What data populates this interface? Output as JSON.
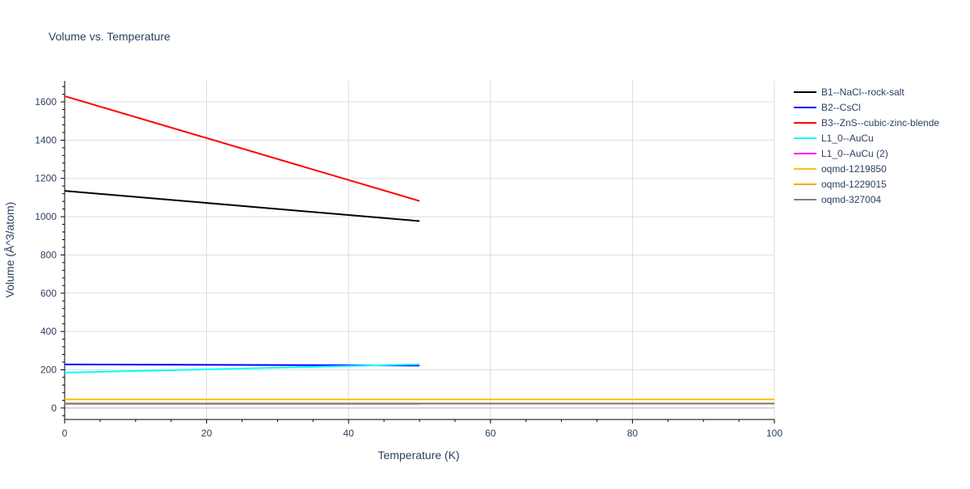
{
  "chart_data": {
    "type": "line",
    "title": "Volume vs. Temperature",
    "xlabel": "Temperature (K)",
    "ylabel": "Volume (Å^3/atom)",
    "xlim": [
      0,
      100
    ],
    "ylim": [
      -60,
      1710
    ],
    "x_ticks": [
      0,
      20,
      40,
      60,
      80,
      100
    ],
    "y_ticks": [
      0,
      200,
      400,
      600,
      800,
      1000,
      1200,
      1400,
      1600
    ],
    "grid": true,
    "legend_position": "right",
    "series": [
      {
        "name": "B1--NaCl--rock-salt",
        "color": "#000000",
        "x": [
          0,
          50
        ],
        "y": [
          1135,
          977
        ]
      },
      {
        "name": "B2--CsCl",
        "color": "#0000ff",
        "x": [
          0,
          50
        ],
        "y": [
          228,
          222
        ]
      },
      {
        "name": "B3--ZnS--cubic-zinc-blende",
        "color": "#ff0000",
        "x": [
          0,
          50
        ],
        "y": [
          1630,
          1082
        ]
      },
      {
        "name": "L1_0--AuCu",
        "color": "#00ffff",
        "x": [
          0,
          50
        ],
        "y": [
          185,
          228
        ]
      },
      {
        "name": "L1_0--AuCu (2)",
        "color": "#ff00ff",
        "x": [
          0,
          50
        ],
        "y": [
          22,
          22
        ]
      },
      {
        "name": "oqmd-1219850",
        "color": "#f5c518",
        "x": [
          0,
          100
        ],
        "y": [
          45,
          45
        ]
      },
      {
        "name": "oqmd-1229015",
        "color": "#ffa500",
        "x": [
          0,
          100
        ],
        "y": [
          24,
          24
        ]
      },
      {
        "name": "oqmd-327004",
        "color": "#808080",
        "x": [
          0,
          100
        ],
        "y": [
          23,
          23
        ]
      }
    ]
  }
}
